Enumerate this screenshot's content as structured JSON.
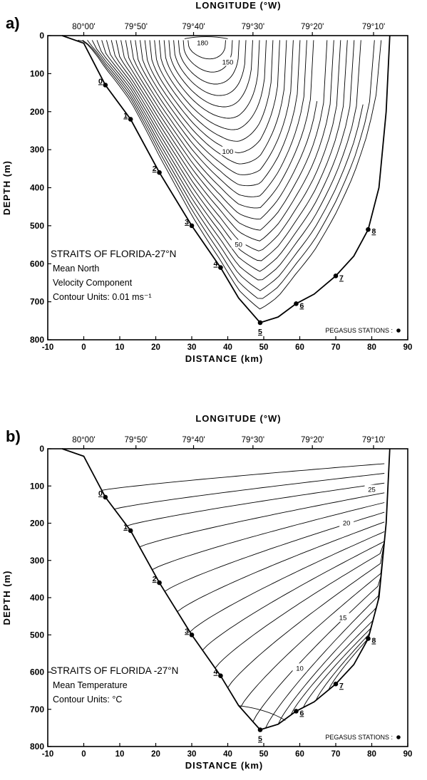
{
  "chart_data": [
    {
      "panel": "a)",
      "type": "contour",
      "top_axis_label": "LONGITUDE (°W)",
      "top_ticks": [
        "80°00'",
        "79°50'",
        "79°40'",
        "79°30'",
        "79°20'",
        "79°10'"
      ],
      "xlabel": "DISTANCE (km)",
      "ylabel": "DEPTH (m)",
      "xlim": [
        -10,
        90
      ],
      "ylim": [
        0,
        800
      ],
      "x_ticks": [
        "-10",
        "0",
        "10",
        "20",
        "30",
        "40",
        "50",
        "60",
        "70",
        "80",
        "90"
      ],
      "y_ticks": [
        "0",
        "100",
        "200",
        "300",
        "400",
        "500",
        "600",
        "700",
        "800"
      ],
      "bottom_profile": [
        [
          -6,
          0
        ],
        [
          0,
          20
        ],
        [
          6,
          130
        ],
        [
          13,
          220
        ],
        [
          21,
          360
        ],
        [
          30,
          500
        ],
        [
          38,
          610
        ],
        [
          43,
          690
        ],
        [
          49,
          755
        ],
        [
          54,
          740
        ],
        [
          59,
          705
        ],
        [
          64,
          680
        ],
        [
          70,
          632
        ],
        [
          75,
          580
        ],
        [
          79,
          510
        ],
        [
          82,
          400
        ],
        [
          84,
          200
        ],
        [
          85,
          0
        ]
      ],
      "stations": [
        {
          "label": "0",
          "x": 6,
          "depth": 130
        },
        {
          "label": "1",
          "x": 13,
          "depth": 220
        },
        {
          "label": "2",
          "x": 21,
          "depth": 360
        },
        {
          "label": "3",
          "x": 30,
          "depth": 500
        },
        {
          "label": "4",
          "x": 38,
          "depth": 610
        },
        {
          "label": "5",
          "x": 49,
          "depth": 755
        },
        {
          "label": "6",
          "x": 59,
          "depth": 705
        },
        {
          "label": "7",
          "x": 70,
          "depth": 632
        },
        {
          "label": "8",
          "x": 79,
          "depth": 510
        }
      ],
      "core": {
        "x": 34,
        "depth": 12
      },
      "contour_labels": [
        {
          "text": "180",
          "x": 33,
          "depth": 20
        },
        {
          "text": "150",
          "x": 40,
          "depth": 70
        },
        {
          "text": "100",
          "x": 40,
          "depth": 305
        },
        {
          "text": "50",
          "x": 43,
          "depth": 550
        }
      ],
      "annotation_lines": [
        "STRAITS OF FLORIDA-27°N",
        "Mean North",
        "Velocity Component",
        "Contour Units: 0.01 ms⁻¹"
      ],
      "stations_legend": "PEGASUS STATIONS :"
    },
    {
      "panel": "b)",
      "type": "contour",
      "top_axis_label": "LONGITUDE (°W)",
      "top_ticks": [
        "80°00'",
        "79°50'",
        "79°40'",
        "79°30'",
        "79°20'",
        "79°10'"
      ],
      "xlabel": "DISTANCE (km)",
      "ylabel": "DEPTH (m)",
      "xlim": [
        -10,
        90
      ],
      "ylim": [
        0,
        800
      ],
      "x_ticks": [
        "-10",
        "0",
        "10",
        "20",
        "30",
        "40",
        "50",
        "60",
        "70",
        "80",
        "90"
      ],
      "y_ticks": [
        "0",
        "100",
        "200",
        "300",
        "400",
        "500",
        "600",
        "700",
        "800"
      ],
      "bottom_profile": [
        [
          -6,
          0
        ],
        [
          0,
          20
        ],
        [
          6,
          130
        ],
        [
          13,
          220
        ],
        [
          21,
          360
        ],
        [
          30,
          500
        ],
        [
          38,
          610
        ],
        [
          43,
          690
        ],
        [
          49,
          755
        ],
        [
          54,
          740
        ],
        [
          59,
          705
        ],
        [
          64,
          680
        ],
        [
          70,
          632
        ],
        [
          75,
          580
        ],
        [
          79,
          510
        ],
        [
          82,
          400
        ],
        [
          84,
          200
        ],
        [
          85,
          0
        ]
      ],
      "stations": [
        {
          "label": "0",
          "x": 6,
          "depth": 130
        },
        {
          "label": "1",
          "x": 13,
          "depth": 220
        },
        {
          "label": "2",
          "x": 21,
          "depth": 360
        },
        {
          "label": "3",
          "x": 30,
          "depth": 500
        },
        {
          "label": "4",
          "x": 38,
          "depth": 610
        },
        {
          "label": "5",
          "x": 49,
          "depth": 755
        },
        {
          "label": "6",
          "x": 59,
          "depth": 705
        },
        {
          "label": "7",
          "x": 70,
          "depth": 632
        },
        {
          "label": "8",
          "x": 79,
          "depth": 510
        }
      ],
      "contour_labels": [
        {
          "text": "25",
          "x": 80,
          "depth": 110
        },
        {
          "text": "20",
          "x": 73,
          "depth": 200
        },
        {
          "text": "15",
          "x": 72,
          "depth": 455
        },
        {
          "text": "10",
          "x": 60,
          "depth": 590
        }
      ],
      "annotation_lines": [
        "STRAITS OF FLORIDA -27°N",
        "Mean Temperature",
        "Contour Units: °C"
      ],
      "stations_legend": "PEGASUS STATIONS :"
    }
  ]
}
